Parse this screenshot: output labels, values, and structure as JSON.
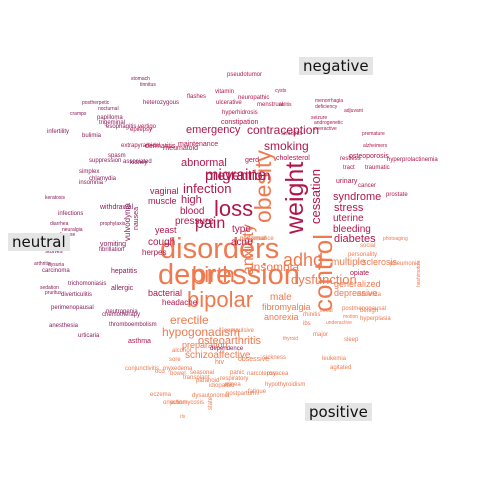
{
  "groups": [
    {
      "key": "negative",
      "label": "negative",
      "color": "#b2174b"
    },
    {
      "key": "neutral",
      "label": "neutral",
      "color": "#8a1d5c"
    },
    {
      "key": "positive",
      "label": "positive",
      "color": "#ef7a50"
    }
  ],
  "words": [
    {
      "t": "disorders",
      "g": "positive"
    },
    {
      "t": "depression",
      "g": "positive"
    },
    {
      "t": "bipolar",
      "g": "positive"
    },
    {
      "t": "birth",
      "g": "positive"
    },
    {
      "t": "control",
      "g": "positive"
    },
    {
      "t": "weight",
      "g": "negative"
    },
    {
      "t": "obesity",
      "g": "positive"
    },
    {
      "t": "loss",
      "g": "negative"
    },
    {
      "t": "anxiety",
      "g": "positive"
    },
    {
      "t": "adhd",
      "g": "positive"
    },
    {
      "t": "migraine",
      "g": "negative"
    },
    {
      "t": "prevention",
      "g": "negative"
    },
    {
      "t": "insomnia",
      "g": "positive"
    },
    {
      "t": "contraception",
      "g": "negative"
    },
    {
      "t": "cessation",
      "g": "negative"
    },
    {
      "t": "pain",
      "g": "negative"
    },
    {
      "t": "infection",
      "g": "negative"
    },
    {
      "t": "smoking",
      "g": "negative"
    },
    {
      "t": "dysfunction",
      "g": "positive"
    },
    {
      "t": "emergency",
      "g": "negative"
    },
    {
      "t": "erectile",
      "g": "positive"
    },
    {
      "t": "hypogonadism",
      "g": "positive"
    },
    {
      "t": "abnormal",
      "g": "negative"
    },
    {
      "t": "diabetes",
      "g": "negative"
    },
    {
      "t": "stress",
      "g": "negative"
    },
    {
      "t": "uterine",
      "g": "negative"
    },
    {
      "t": "bleeding",
      "g": "negative"
    },
    {
      "t": "syndrome",
      "g": "negative"
    },
    {
      "t": "high",
      "g": "negative"
    },
    {
      "t": "blood",
      "g": "negative"
    },
    {
      "t": "pressure",
      "g": "negative"
    },
    {
      "t": "muscle",
      "g": "negative"
    },
    {
      "t": "acne",
      "g": "negative"
    },
    {
      "t": "type",
      "g": "negative"
    },
    {
      "t": "cough",
      "g": "negative"
    },
    {
      "t": "yeast",
      "g": "negative"
    },
    {
      "t": "vaginal",
      "g": "negative"
    },
    {
      "t": "bacterial",
      "g": "negative"
    },
    {
      "t": "headache",
      "g": "negative"
    },
    {
      "t": "herpes",
      "g": "negative"
    },
    {
      "t": "fibromyalgia",
      "g": "positive"
    },
    {
      "t": "male",
      "g": "positive"
    },
    {
      "t": "anorexia",
      "g": "positive"
    },
    {
      "t": "osteoarthritis",
      "g": "positive"
    },
    {
      "t": "schizoaffective",
      "g": "positive"
    },
    {
      "t": "preparation",
      "g": "positive"
    },
    {
      "t": "sclerosis",
      "g": "positive"
    },
    {
      "t": "multiple",
      "g": "positive"
    },
    {
      "t": "generalized",
      "g": "positive"
    },
    {
      "t": "depressive",
      "g": "positive"
    },
    {
      "t": "opiate",
      "g": "negative"
    },
    {
      "t": "cholesterol",
      "g": "negative"
    },
    {
      "t": "asthma",
      "g": "negative"
    },
    {
      "t": "gerd",
      "g": "negative"
    },
    {
      "t": "rheumatoid",
      "g": "negative"
    },
    {
      "t": "maintenance",
      "g": "negative"
    },
    {
      "t": "dermatitis",
      "g": "negative"
    },
    {
      "t": "extrapyramidal",
      "g": "negative"
    },
    {
      "t": "osteoporosis",
      "g": "negative"
    },
    {
      "t": "urinary",
      "g": "negative"
    },
    {
      "t": "cancer",
      "g": "negative"
    },
    {
      "t": "tract",
      "g": "negative"
    },
    {
      "t": "traumatic",
      "g": "negative"
    },
    {
      "t": "restless",
      "g": "negative"
    },
    {
      "t": "hyperprolactinemia",
      "g": "negative"
    },
    {
      "t": "prostate",
      "g": "negative"
    },
    {
      "t": "constipation",
      "g": "negative"
    },
    {
      "t": "epilepsy",
      "g": "negative"
    },
    {
      "t": "vertigo",
      "g": "negative"
    },
    {
      "t": "vitamin",
      "g": "negative"
    },
    {
      "t": "flashes",
      "g": "negative"
    },
    {
      "t": "ulcerative",
      "g": "negative"
    },
    {
      "t": "neuropathic",
      "g": "negative"
    },
    {
      "t": "menstrual",
      "g": "negative"
    },
    {
      "t": "hyperhidrosis",
      "g": "negative"
    },
    {
      "t": "colitis",
      "g": "negative"
    },
    {
      "t": "pseudotumor",
      "g": "negative"
    },
    {
      "t": "cysts",
      "g": "negative"
    },
    {
      "t": "menorrhagia",
      "g": "negative"
    },
    {
      "t": "seizure",
      "g": "negative"
    },
    {
      "t": "androgenetic",
      "g": "negative"
    },
    {
      "t": "alzheimers",
      "g": "negative"
    },
    {
      "t": "premature",
      "g": "negative"
    },
    {
      "t": "overactive",
      "g": "negative"
    },
    {
      "t": "deficiency",
      "g": "negative"
    },
    {
      "t": "adjuvant",
      "g": "negative"
    },
    {
      "t": "sinusitis",
      "g": "negative"
    },
    {
      "t": "stomach",
      "g": "neutral"
    },
    {
      "t": "tinnitus",
      "g": "neutral"
    },
    {
      "t": "heterozygous",
      "g": "neutral"
    },
    {
      "t": "papilloma",
      "g": "neutral"
    },
    {
      "t": "trigeminal",
      "g": "neutral"
    },
    {
      "t": "esophagitis",
      "g": "neutral"
    },
    {
      "t": "infertility",
      "g": "neutral"
    },
    {
      "t": "bulimia",
      "g": "neutral"
    },
    {
      "t": "suppression",
      "g": "neutral"
    },
    {
      "t": "simplex",
      "g": "neutral"
    },
    {
      "t": "insomnia",
      "g": "neutral"
    },
    {
      "t": "chlamydia",
      "g": "neutral"
    },
    {
      "t": "withdrawal",
      "g": "neutral"
    },
    {
      "t": "prophylaxis",
      "g": "neutral"
    },
    {
      "t": "infections",
      "g": "neutral"
    },
    {
      "t": "diarrhea",
      "g": "neutral"
    },
    {
      "t": "vulvodynia",
      "g": "neutral"
    },
    {
      "t": "nausea",
      "g": "neutral"
    },
    {
      "t": "vomiting",
      "g": "neutral"
    },
    {
      "t": "fibrillation",
      "g": "neutral"
    },
    {
      "t": "hepatitis",
      "g": "neutral"
    },
    {
      "t": "allergic",
      "g": "neutral"
    },
    {
      "t": "stones",
      "g": "neutral"
    },
    {
      "t": "dysuria",
      "g": "neutral"
    },
    {
      "t": "carcinoma",
      "g": "neutral"
    },
    {
      "t": "trichomoniasis",
      "g": "neutral"
    },
    {
      "t": "diverticulitis",
      "g": "neutral"
    },
    {
      "t": "pruritus",
      "g": "neutral"
    },
    {
      "t": "neutropenia",
      "g": "neutral"
    },
    {
      "t": "anesthesia",
      "g": "neutral"
    },
    {
      "t": "perimenopausal",
      "g": "neutral"
    },
    {
      "t": "urticaria",
      "g": "neutral"
    },
    {
      "t": "thromboembolism",
      "g": "neutral"
    },
    {
      "t": "chemotherapy",
      "g": "neutral"
    },
    {
      "t": "neuralgia",
      "g": "neutral"
    },
    {
      "t": "disease",
      "g": "neutral"
    },
    {
      "t": "arthritis",
      "g": "neutral"
    },
    {
      "t": "sedation",
      "g": "neutral"
    },
    {
      "t": "keratosis",
      "g": "neutral"
    },
    {
      "t": "cramps",
      "g": "neutral"
    },
    {
      "t": "postherpetic",
      "g": "neutral"
    },
    {
      "t": "nocturnal",
      "g": "neutral"
    },
    {
      "t": "associated",
      "g": "neutral"
    },
    {
      "t": "spasm",
      "g": "neutral"
    },
    {
      "t": "kidney",
      "g": "neutral"
    },
    {
      "t": "dependence",
      "g": "neutral"
    },
    {
      "t": "hiv",
      "g": "positive"
    },
    {
      "t": "obsessive",
      "g": "positive"
    },
    {
      "t": "compulsive",
      "g": "positive"
    },
    {
      "t": "panic",
      "g": "positive"
    },
    {
      "t": "narcolepsy",
      "g": "positive"
    },
    {
      "t": "rosacea",
      "g": "positive"
    },
    {
      "t": "apnea",
      "g": "positive"
    },
    {
      "t": "hypothyroidism",
      "g": "positive"
    },
    {
      "t": "paranoid",
      "g": "positive"
    },
    {
      "t": "postpartum",
      "g": "positive"
    },
    {
      "t": "fatigue",
      "g": "positive"
    },
    {
      "t": "benign",
      "g": "positive"
    },
    {
      "t": "hyperplasia",
      "g": "positive"
    },
    {
      "t": "influenza",
      "g": "positive"
    },
    {
      "t": "personality",
      "g": "positive"
    },
    {
      "t": "social",
      "g": "positive"
    },
    {
      "t": "pneumonia",
      "g": "positive"
    },
    {
      "t": "photoaging",
      "g": "positive"
    },
    {
      "t": "hashimoto's",
      "g": "positive"
    },
    {
      "t": "postmenopausal",
      "g": "positive"
    },
    {
      "t": "motion",
      "g": "positive"
    },
    {
      "t": "sickness",
      "g": "positive"
    },
    {
      "t": "thyroid",
      "g": "positive"
    },
    {
      "t": "bowel",
      "g": "positive"
    },
    {
      "t": "seasonal",
      "g": "positive"
    },
    {
      "t": "ocd",
      "g": "positive"
    },
    {
      "t": "transplant",
      "g": "positive"
    },
    {
      "t": "respiratory",
      "g": "positive"
    },
    {
      "t": "idiopathic",
      "g": "positive"
    },
    {
      "t": "onychomycosis",
      "g": "positive"
    },
    {
      "t": "dysautonomia",
      "g": "positive"
    },
    {
      "t": "eczema",
      "g": "positive"
    },
    {
      "t": "conjunctivitis",
      "g": "positive"
    },
    {
      "t": "leukemia",
      "g": "positive"
    },
    {
      "t": "autism",
      "g": "positive"
    },
    {
      "t": "myxedema",
      "g": "positive"
    },
    {
      "t": "alcohol",
      "g": "positive"
    },
    {
      "t": "sore",
      "g": "positive"
    },
    {
      "t": "throat",
      "g": "positive"
    },
    {
      "t": "rhinitis",
      "g": "positive"
    },
    {
      "t": "ibs",
      "g": "positive"
    },
    {
      "t": "major",
      "g": "positive"
    },
    {
      "t": "underactive",
      "g": "positive"
    },
    {
      "t": "sleep",
      "g": "positive"
    },
    {
      "t": "agitated",
      "g": "positive"
    },
    {
      "t": "rls",
      "g": "positive"
    },
    {
      "t": "state",
      "g": "positive"
    },
    {
      "t": "non-small",
      "g": "positive"
    },
    {
      "t": "performance",
      "g": "positive"
    }
  ]
}
